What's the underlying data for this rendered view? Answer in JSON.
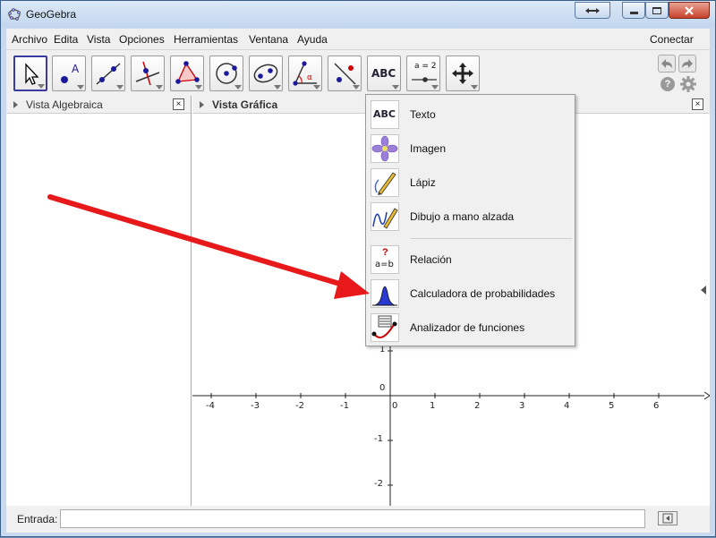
{
  "window": {
    "title": "GeoGebra"
  },
  "menu": {
    "items": [
      "Archivo",
      "Edita",
      "Vista",
      "Opciones",
      "Herramientas",
      "Ventana",
      "Ayuda"
    ],
    "connect": "Conectar"
  },
  "toolbar": {
    "tools": [
      "move-tool",
      "point-tool",
      "line-tool",
      "perpendicular-tool",
      "polygon-tool",
      "circle-tool",
      "conic-tool",
      "angle-tool",
      "reflect-tool",
      "text-tool",
      "slider-tool",
      "move-view-tool"
    ],
    "text_tool_label": "ABC",
    "slider_label": "a = 2"
  },
  "algebra_view": {
    "title": "Vista Algebraica",
    "close": "×"
  },
  "graphics_view": {
    "title": "Vista Gráfica",
    "close": "×",
    "x_ticks": [
      "-4",
      "-3",
      "-2",
      "-1",
      "0",
      "1",
      "2",
      "3",
      "4",
      "5",
      "6"
    ],
    "y_ticks": [
      "1",
      "0",
      "-1",
      "-2"
    ]
  },
  "dropdown": {
    "items": [
      {
        "label": "Texto",
        "icon": "text-icon",
        "glyph": "ABC"
      },
      {
        "label": "Imagen",
        "icon": "image-icon"
      },
      {
        "label": "Lápiz",
        "icon": "pen-icon"
      },
      {
        "label": "Dibujo a mano alzada",
        "icon": "freehand-icon"
      },
      {
        "label": "Relación",
        "icon": "relation-icon",
        "glyph_top": "?",
        "glyph_bottom": "a=b"
      },
      {
        "label": "Calculadora de probabilidades",
        "icon": "probability-icon"
      },
      {
        "label": "Analizador de funciones",
        "icon": "function-inspector-icon"
      }
    ]
  },
  "input_bar": {
    "label": "Entrada:",
    "value": ""
  },
  "colors": {
    "arrow": "#e8191b",
    "axis": "#222222",
    "accent": "#3a3aa0"
  }
}
